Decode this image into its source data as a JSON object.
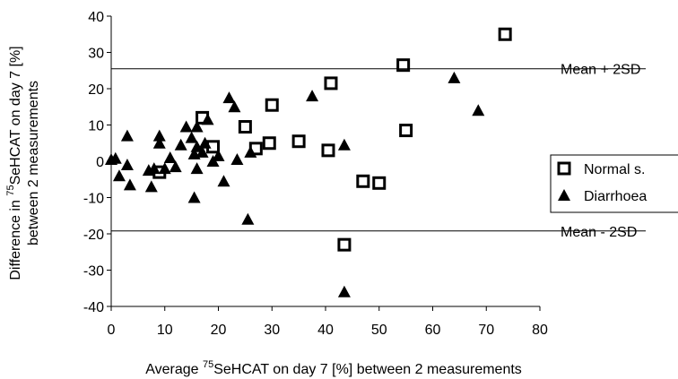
{
  "chart_data": {
    "type": "scatter",
    "xlabel_parts": [
      "Average ",
      "75",
      "SeHCAT on day 7 [%] between 2 measurements"
    ],
    "ylabel_line1_parts": [
      "Difference in ",
      "75",
      "SeHCAT on day 7 [%]"
    ],
    "ylabel_line2": "between 2 measurements",
    "xlim": [
      0,
      80
    ],
    "ylim": [
      -40,
      40
    ],
    "x_ticks": [
      0,
      10,
      20,
      30,
      40,
      50,
      60,
      70,
      80
    ],
    "y_ticks": [
      -40,
      -30,
      -20,
      -10,
      0,
      10,
      20,
      30,
      40
    ],
    "grid": false,
    "legend_position": "right",
    "reference_lines": [
      {
        "label": "Mean + 2SD",
        "y": 25.5
      },
      {
        "label": "Mean - 2SD",
        "y": -19.2
      }
    ],
    "series": [
      {
        "name": "Normal s.",
        "marker": "square-open",
        "points": [
          {
            "x": 9,
            "y": -3
          },
          {
            "x": 17,
            "y": 12
          },
          {
            "x": 19,
            "y": 4
          },
          {
            "x": 25,
            "y": 9.5
          },
          {
            "x": 27,
            "y": 3.5
          },
          {
            "x": 29.5,
            "y": 5
          },
          {
            "x": 30,
            "y": 15.5
          },
          {
            "x": 35,
            "y": 5.5
          },
          {
            "x": 40.5,
            "y": 3
          },
          {
            "x": 41,
            "y": 21.5
          },
          {
            "x": 43.5,
            "y": -23
          },
          {
            "x": 47,
            "y": -5.5
          },
          {
            "x": 50,
            "y": -6
          },
          {
            "x": 54.5,
            "y": 26.5
          },
          {
            "x": 55,
            "y": 8.5
          },
          {
            "x": 73.5,
            "y": 35
          }
        ]
      },
      {
        "name": "Diarrhoea",
        "marker": "triangle-filled",
        "points": [
          {
            "x": 0,
            "y": 0.5
          },
          {
            "x": 0.8,
            "y": 0.8
          },
          {
            "x": 1.5,
            "y": -4
          },
          {
            "x": 3,
            "y": 7
          },
          {
            "x": 3,
            "y": -1
          },
          {
            "x": 3.5,
            "y": -6.5
          },
          {
            "x": 7,
            "y": -2.5
          },
          {
            "x": 7.5,
            "y": -7
          },
          {
            "x": 8,
            "y": -2
          },
          {
            "x": 9,
            "y": 7
          },
          {
            "x": 9,
            "y": 5
          },
          {
            "x": 10,
            "y": -2
          },
          {
            "x": 11,
            "y": 1
          },
          {
            "x": 12,
            "y": -1.5
          },
          {
            "x": 13,
            "y": 4.5
          },
          {
            "x": 14,
            "y": 9.5
          },
          {
            "x": 15,
            "y": 6.5
          },
          {
            "x": 15.5,
            "y": 2
          },
          {
            "x": 16,
            "y": 4
          },
          {
            "x": 16,
            "y": 9.5
          },
          {
            "x": 16,
            "y": -2
          },
          {
            "x": 15.5,
            "y": -10
          },
          {
            "x": 17,
            "y": 2.5
          },
          {
            "x": 17.5,
            "y": 5
          },
          {
            "x": 18,
            "y": 11.5
          },
          {
            "x": 19,
            "y": 0
          },
          {
            "x": 20,
            "y": 1.5
          },
          {
            "x": 21,
            "y": -5.5
          },
          {
            "x": 22,
            "y": 17.5
          },
          {
            "x": 23,
            "y": 15
          },
          {
            "x": 23.5,
            "y": 0.5
          },
          {
            "x": 25.5,
            "y": -16
          },
          {
            "x": 26,
            "y": 2.5
          },
          {
            "x": 37.5,
            "y": 18
          },
          {
            "x": 43.5,
            "y": 4.5
          },
          {
            "x": 43.5,
            "y": -36
          },
          {
            "x": 64,
            "y": 23
          },
          {
            "x": 68.5,
            "y": 14
          }
        ]
      }
    ]
  }
}
